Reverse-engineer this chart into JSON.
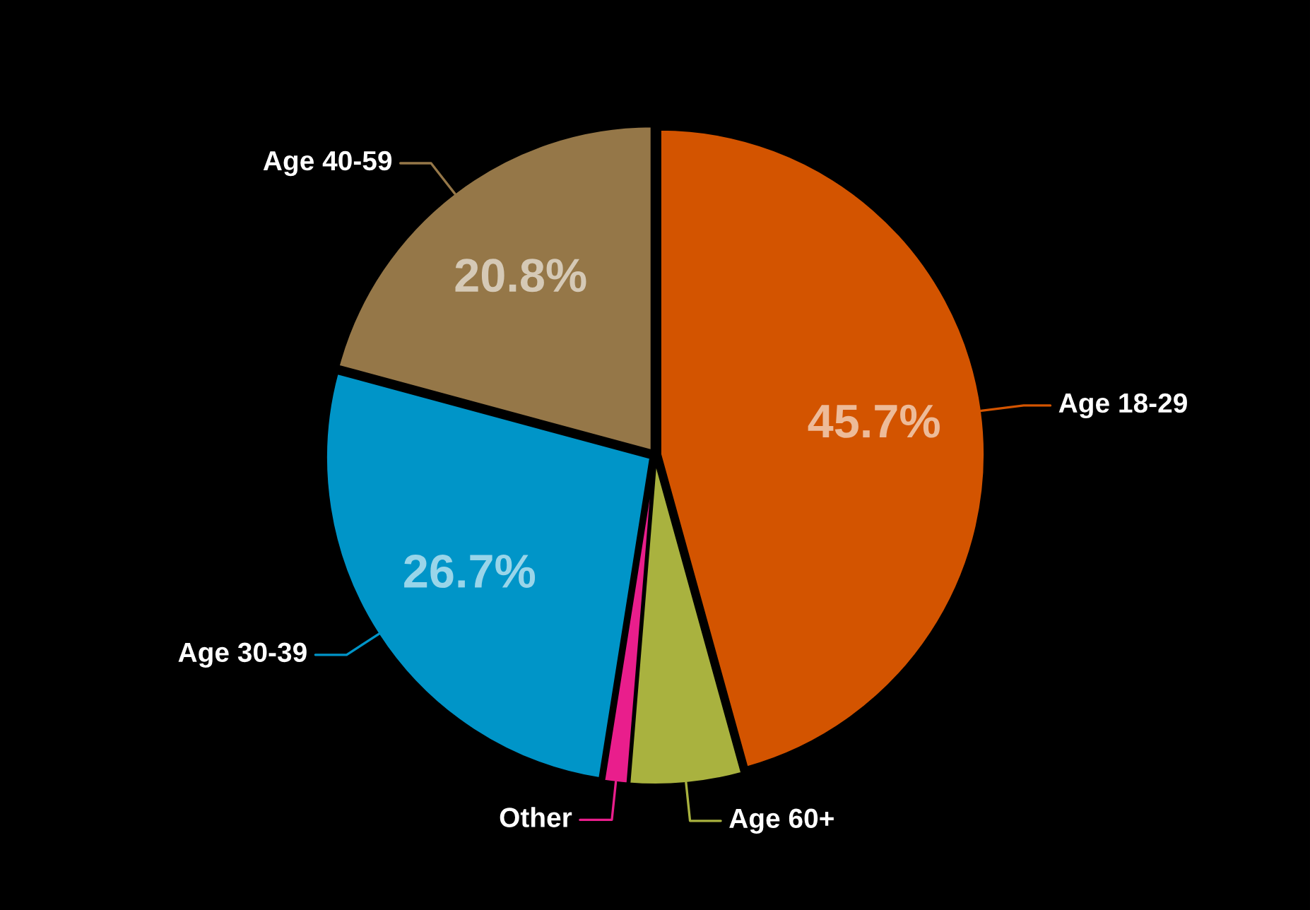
{
  "chart_data": {
    "type": "pie",
    "categories": [
      "Age 18-29",
      "Age 60+",
      "Other",
      "Age 30-39",
      "Age 40-59"
    ],
    "values": [
      45.7,
      5.6,
      1.2,
      26.7,
      20.8
    ],
    "colors": [
      "#d35400",
      "#a9b23f",
      "#e91e8c",
      "#0095c8",
      "#957748"
    ],
    "value_labels": [
      "45.7%",
      null,
      null,
      "26.7%",
      "20.8%"
    ],
    "legend": false
  }
}
